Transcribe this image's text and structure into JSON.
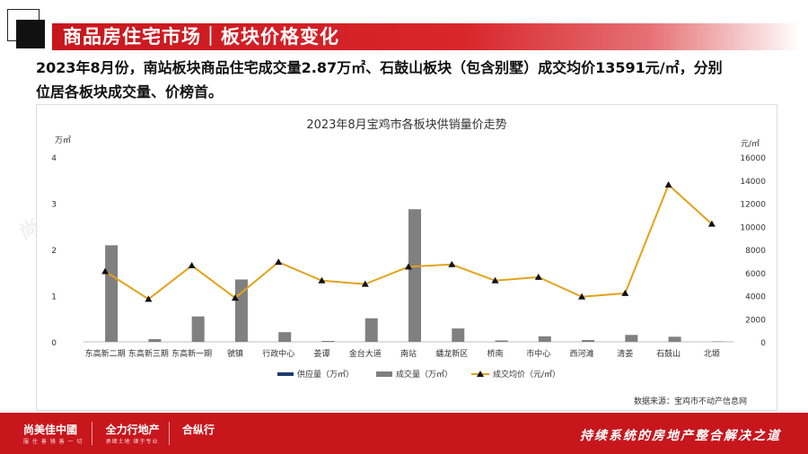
{
  "header": {
    "title": "商品房住宅市场｜板块价格变化"
  },
  "headline": {
    "line1": "2023年8月份，南站板块商品住宅成交量2.87万㎡、石鼓山板块（包含别墅）成交均价13591元/㎡，分别",
    "line2": "位居各板块成交量、价榜首。"
  },
  "chart_data": {
    "type": "bar",
    "title": "2023年8月宝鸡市各板块供销量价走势",
    "left_unit": "万㎡",
    "right_unit": "元/㎡",
    "categories": [
      "东高新二期",
      "东高新三期",
      "东高新一期",
      "虢镇",
      "行政中心",
      "姜谭",
      "金台大道",
      "南站",
      "蟠龙新区",
      "桥南",
      "市中心",
      "西河滩",
      "清姜",
      "石鼓山",
      "北塬"
    ],
    "y_left": {
      "min": 0,
      "max": 4,
      "ticks": [
        0,
        1,
        2,
        3,
        4
      ]
    },
    "y_right": {
      "min": 0,
      "max": 16000,
      "ticks": [
        0,
        2000,
        4000,
        6000,
        8000,
        10000,
        12000,
        14000,
        16000
      ]
    },
    "series": [
      {
        "name": "供应量（万㎡）",
        "type": "bar",
        "axis": "left",
        "color": "#1f3a6e",
        "values": [
          0,
          0,
          0,
          0,
          0,
          0,
          0,
          0,
          0,
          0,
          0,
          0,
          0,
          0,
          0
        ]
      },
      {
        "name": "成交量（万㎡）",
        "type": "bar",
        "axis": "left",
        "color": "#808080",
        "values": [
          2.09,
          0.06,
          0.55,
          1.35,
          0.21,
          0.02,
          0.51,
          2.87,
          0.29,
          0.03,
          0.12,
          0.04,
          0.15,
          0.11,
          0.01
        ]
      },
      {
        "name": "成交均价（元/㎡）",
        "type": "line",
        "axis": "right",
        "color": "#e3a21a",
        "values": [
          6100,
          3700,
          6600,
          3800,
          6900,
          5300,
          5000,
          6500,
          6700,
          5300,
          5600,
          3900,
          4200,
          13591,
          10200
        ]
      }
    ],
    "legend_position": "bottom",
    "grid": false
  },
  "source": "数据来源：宝鸡市不动产信息网",
  "footer": {
    "logo1": "尚美佳中國",
    "logo1_sub": "服 住 善 镜 善 一 切",
    "logo2": "全力行地产",
    "logo2_sub": "承继土地 继于专业",
    "logo3": "合纵行",
    "logo3_sub": "",
    "slogan": "持续系统的房地产整合解决之道"
  },
  "colors": {
    "brand_red": "#c8161d",
    "bar_gray": "#808080",
    "line_gold": "#e3a21a",
    "supply_navy": "#1f3a6e"
  }
}
